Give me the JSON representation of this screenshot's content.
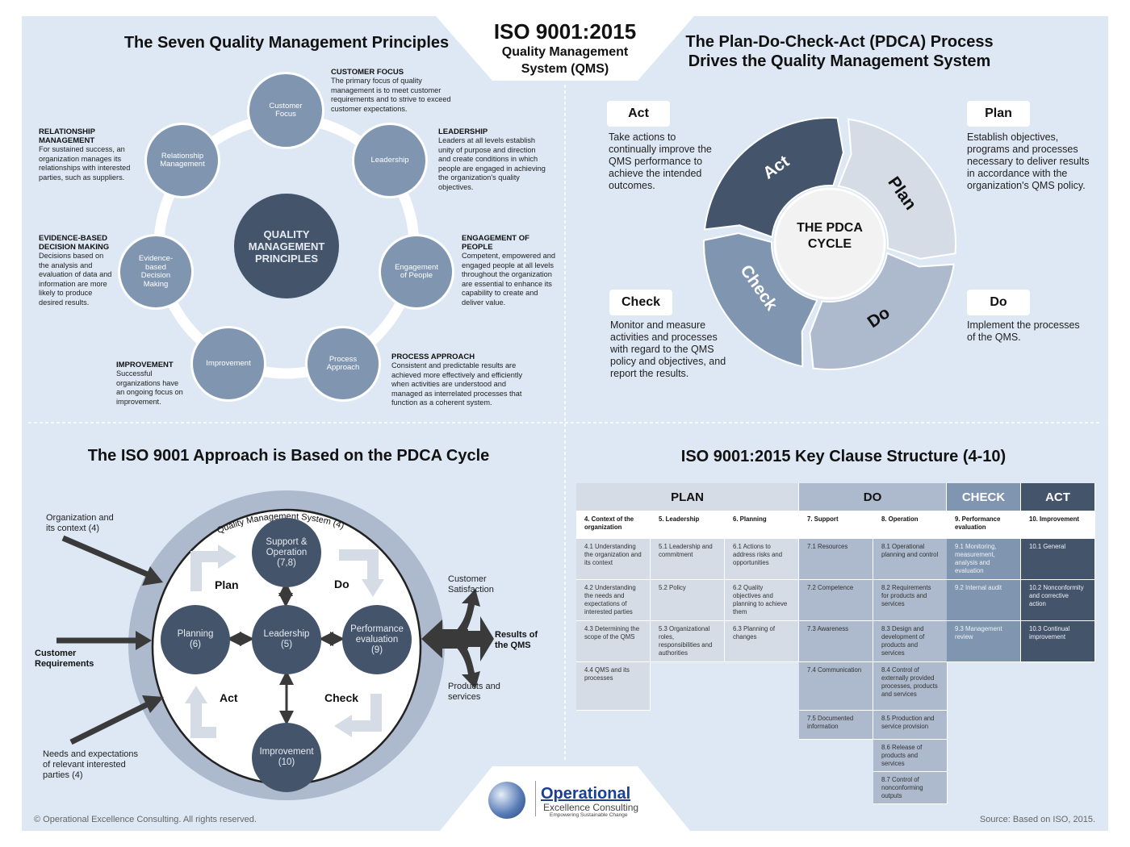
{
  "header": {
    "title": "ISO 9001:2015",
    "subtitle": "Quality Management System (QMS)"
  },
  "principles": {
    "heading": "The Seven Quality Management Principles",
    "center": "QUALITY MANAGEMENT PRINCIPLES",
    "items": [
      {
        "circle": "Customer Focus",
        "title": "CUSTOMER FOCUS",
        "text": "The primary focus of quality management is to meet customer requirements and to strive to exceed customer expectations."
      },
      {
        "circle": "Leadership",
        "title": "LEADERSHIP",
        "text": "Leaders at all levels establish unity of purpose and direction and create conditions in which people are engaged in achieving the organization's quality objectives."
      },
      {
        "circle": "Engagement of People",
        "title": "ENGAGEMENT OF PEOPLE",
        "text": "Competent, empowered and engaged people at all levels throughout the organization are essential to enhance its capability to create and deliver value."
      },
      {
        "circle": "Process Approach",
        "title": "PROCESS APPROACH",
        "text": "Consistent and predictable results are achieved more effectively and efficiently when activities are understood and managed as interrelated processes that function as a coherent system."
      },
      {
        "circle": "Improvement",
        "title": "IMPROVEMENT",
        "text": "Successful organizations have an ongoing focus on improvement."
      },
      {
        "circle": "Evidence-based Decision Making",
        "title": "EVIDENCE-BASED DECISION MAKING",
        "text": "Decisions based on the analysis and evaluation of data and information are more likely to produce desired results."
      },
      {
        "circle": "Relationship Management",
        "title": "RELATIONSHIP MANAGEMENT",
        "text": "For sustained success, an organization manages its relationships with interested parties, such as suppliers."
      }
    ]
  },
  "pdca": {
    "heading": "The Plan-Do-Check-Act (PDCA) Process Drives the Quality Management System",
    "center": "THE PDCA CYCLE",
    "colors": {
      "act": "#44546b",
      "plan": "#d5dce6",
      "do": "#adb9cc",
      "check": "#8095b0"
    },
    "act": {
      "label": "Act",
      "text": "Take actions to continually improve the QMS performance to achieve the intended outcomes."
    },
    "plan": {
      "label": "Plan",
      "text": "Establish objectives, programs and processes necessary to deliver results in accordance with the organization's QMS policy."
    },
    "check": {
      "label": "Check",
      "text": "Monitor and measure activities and processes with regard to the QMS policy and objectives, and report the results."
    },
    "do": {
      "label": "Do",
      "text": "Implement the processes of the QMS."
    }
  },
  "approach": {
    "heading": "The ISO 9001 Approach is Based on the PDCA Cycle",
    "ring_label": "Quality Management System (4)",
    "nodes": {
      "support": "Support &\nOperation\n(7,8)",
      "planning": "Planning\n(6)",
      "leadership": "Leadership\n(5)",
      "performance": "Performance\nevaluation\n(9)",
      "improvement": "Improvement\n(10)"
    },
    "phases": {
      "plan": "Plan",
      "do": "Do",
      "act": "Act",
      "check": "Check"
    },
    "inputs": {
      "org_context": "Organization and its context (4)",
      "customer_req": "Customer Requirements",
      "needs": "Needs and expectations of relevant interested parties (4)"
    },
    "outputs": {
      "satisfaction": "Customer Satisfaction",
      "results": "Results of the QMS",
      "products": "Products and services"
    }
  },
  "clauses": {
    "heading": "ISO 9001:2015 Key Clause Structure (4-10)",
    "phases": [
      {
        "label": "PLAN",
        "color": "#d5dce6"
      },
      {
        "label": "DO",
        "color": "#adb9cc"
      },
      {
        "label": "CHECK",
        "color": "#8095b0"
      },
      {
        "label": "ACT",
        "color": "#44546b"
      }
    ],
    "columns": [
      {
        "title": "4. Context of the organization",
        "items": [
          "4.1 Understanding the organization and its context",
          "4.2 Understanding the needs and expectations of interested parties",
          "4.3 Determining the scope of the QMS",
          "4.4 QMS and its processes"
        ]
      },
      {
        "title": "5. Leadership",
        "items": [
          "5.1 Leadership and commitment",
          "5.2 Policy",
          "5.3 Organizational roles, responsibilities and authorities"
        ]
      },
      {
        "title": "6. Planning",
        "items": [
          "6.1 Actions to address risks and opportunities",
          "6.2 Quality objectives and planning to achieve them",
          "6.3 Planning of changes"
        ]
      },
      {
        "title": "7. Support",
        "items": [
          "7.1 Resources",
          "7.2 Competence",
          "7.3 Awareness",
          "7.4 Communication",
          "7.5 Documented information"
        ]
      },
      {
        "title": "8. Operation",
        "items": [
          "8.1 Operational planning and control",
          "8.2 Requirements for products and services",
          "8.3 Design and development of products and services",
          "8.4 Control of externally provided processes, products and services",
          "8.5 Production and service provision",
          "8.6 Release of products and services",
          "8.7 Control of nonconforming outputs"
        ]
      },
      {
        "title": "9. Performance evaluation",
        "items": [
          "9.1 Monitoring, measurement, analysis and evaluation",
          "9.2 Internal audit",
          "9.3 Management review"
        ]
      },
      {
        "title": "10. Improvement",
        "items": [
          "10.1 General",
          "10.2 Nonconformity and corrective action",
          "10.3 Continual improvement"
        ]
      }
    ]
  },
  "logo": {
    "name": "Operational",
    "line2": "Excellence Consulting",
    "tagline": "Empowering Sustainable Change"
  },
  "footer": {
    "copyright": "© Operational Excellence Consulting. All rights reserved.",
    "source": "Source: Based on ISO, 2015."
  }
}
